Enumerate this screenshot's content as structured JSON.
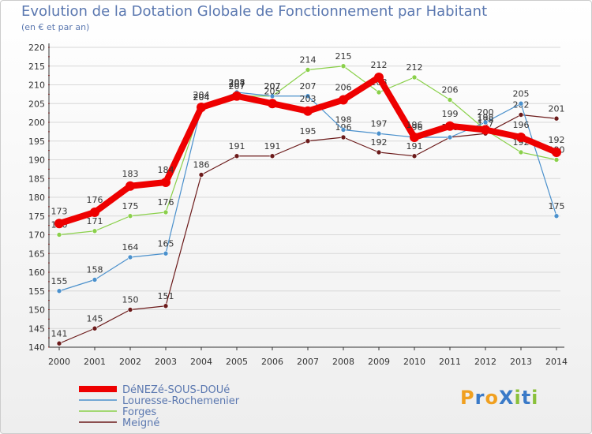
{
  "chart_data": {
    "type": "line",
    "title": "Evolution de la Dotation Globale de Fonctionnement par Habitant",
    "subtitle": "(en € et par an)",
    "x": [
      "2000",
      "2001",
      "2002",
      "2003",
      "2004",
      "2005",
      "2006",
      "2007",
      "2008",
      "2009",
      "2010",
      "2011",
      "2012",
      "2013",
      "2014"
    ],
    "ylim": [
      140,
      220
    ],
    "yticks": [
      140,
      145,
      150,
      155,
      160,
      165,
      170,
      175,
      180,
      185,
      190,
      195,
      200,
      205,
      210,
      215,
      220
    ],
    "series": [
      {
        "name": "DéNEZé-SOUS-DOUé",
        "color": "#ee0000",
        "values": [
          173,
          176,
          183,
          184,
          204,
          207,
          205,
          203,
          206,
          212,
          196,
          199,
          198,
          196,
          192
        ]
      },
      {
        "name": "Louresse-Rochemenier",
        "color": "#4a90cc",
        "values": [
          155,
          158,
          164,
          165,
          204,
          208,
          207,
          207,
          198,
          197,
          196,
          196,
          200,
          205,
          175
        ]
      },
      {
        "name": "Forges",
        "color": "#8ad04a",
        "values": [
          170,
          171,
          175,
          176,
          204,
          207,
          207,
          214,
          215,
          208,
          212,
          206,
          198,
          192,
          190
        ]
      },
      {
        "name": "Meigné",
        "color": "#6b1a1a",
        "values": [
          141,
          145,
          150,
          151,
          186,
          191,
          191,
          195,
          196,
          192,
          191,
          196,
          197,
          202,
          201
        ]
      }
    ]
  },
  "logo": {
    "text": "ProXiti",
    "letters": [
      {
        "ch": "P",
        "color": "#f0a020"
      },
      {
        "ch": "r",
        "color": "#3a7ac8"
      },
      {
        "ch": "o",
        "color": "#f0a020"
      },
      {
        "ch": "X",
        "color": "#3a7ac8"
      },
      {
        "ch": "i",
        "color": "#8ac03a"
      },
      {
        "ch": "t",
        "color": "#3a7ac8"
      },
      {
        "ch": "i",
        "color": "#8ac03a"
      }
    ]
  }
}
